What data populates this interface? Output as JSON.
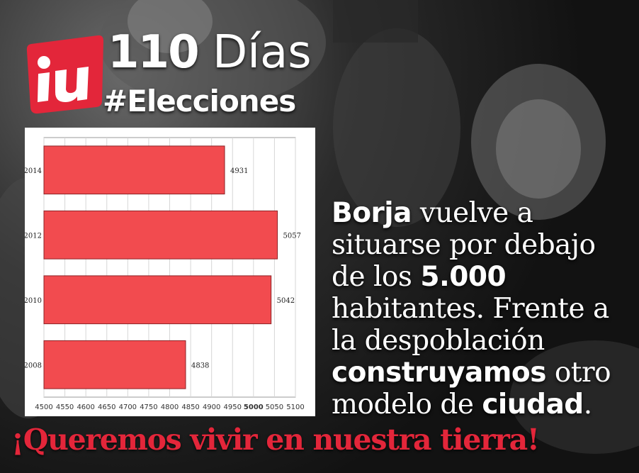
{
  "header": {
    "days_number": "110",
    "days_word": "Días",
    "hashtag": "#Elecciones"
  },
  "logo": {
    "text": "iu",
    "color": "#e3263a"
  },
  "message": {
    "line1_bold": "Borja",
    "line1_rest": " vuelve a",
    "line2": "situarse por debajo",
    "line3_pre": "de los ",
    "line3_bold": "5.000",
    "line4": "habitantes. Frente a",
    "line5": "la despoblación",
    "line6_bold": "construyamos",
    "line6_rest": " otro",
    "line7_pre": "modelo de ",
    "line7_bold": "ciudad",
    "line7_post": "."
  },
  "slogan": "¡Queremos vivir en nuestra tierra!",
  "colors": {
    "bar": "#f24b4f",
    "bar_edge": "#8c2327",
    "slogan": "#e3263a"
  },
  "chart_data": {
    "type": "bar",
    "orientation": "horizontal",
    "categories": [
      "2014",
      "2012",
      "2010",
      "2008"
    ],
    "values": [
      4931,
      5057,
      5042,
      4838
    ],
    "xlim": [
      4500,
      5100
    ],
    "xticks": [
      4500,
      4550,
      4600,
      4650,
      4700,
      4750,
      4800,
      4850,
      4900,
      4950,
      5000,
      5050,
      5100
    ],
    "bold_tick": 5000,
    "grid": true,
    "title": "",
    "xlabel": "",
    "ylabel": ""
  }
}
